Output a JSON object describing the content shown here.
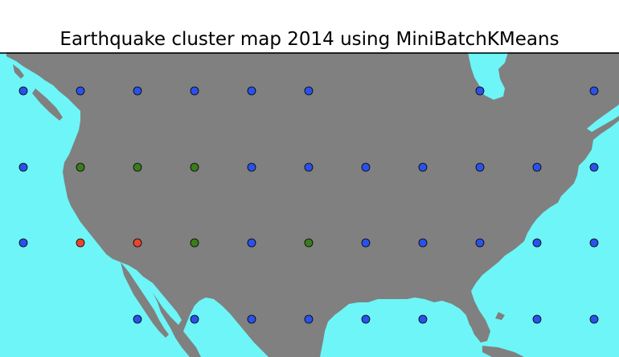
{
  "title": "Earthquake cluster map 2014 using MiniBatchKMeans",
  "colors": {
    "ocean": "#6ef5f7",
    "land": "#808080",
    "frame": "#000000",
    "cluster_blue": "#2a52e8",
    "cluster_green": "#3a7d1c",
    "cluster_red": "#e8452a"
  },
  "chart_data": {
    "type": "scatter",
    "title": "Earthquake cluster map 2014 using MiniBatchKMeans",
    "grid": false,
    "legend": "none",
    "points": [
      {
        "col": 0,
        "row": 0,
        "cluster": "blue"
      },
      {
        "col": 1,
        "row": 0,
        "cluster": "blue"
      },
      {
        "col": 2,
        "row": 0,
        "cluster": "blue"
      },
      {
        "col": 3,
        "row": 0,
        "cluster": "blue"
      },
      {
        "col": 4,
        "row": 0,
        "cluster": "blue"
      },
      {
        "col": 5,
        "row": 0,
        "cluster": "blue"
      },
      {
        "col": 8,
        "row": 0,
        "cluster": "blue"
      },
      {
        "col": 10,
        "row": 0,
        "cluster": "blue"
      },
      {
        "col": 0,
        "row": 1,
        "cluster": "blue"
      },
      {
        "col": 1,
        "row": 1,
        "cluster": "green"
      },
      {
        "col": 2,
        "row": 1,
        "cluster": "green"
      },
      {
        "col": 3,
        "row": 1,
        "cluster": "green"
      },
      {
        "col": 4,
        "row": 1,
        "cluster": "blue"
      },
      {
        "col": 5,
        "row": 1,
        "cluster": "blue"
      },
      {
        "col": 6,
        "row": 1,
        "cluster": "blue"
      },
      {
        "col": 7,
        "row": 1,
        "cluster": "blue"
      },
      {
        "col": 8,
        "row": 1,
        "cluster": "blue"
      },
      {
        "col": 9,
        "row": 1,
        "cluster": "blue"
      },
      {
        "col": 10,
        "row": 1,
        "cluster": "blue"
      },
      {
        "col": 0,
        "row": 2,
        "cluster": "blue"
      },
      {
        "col": 1,
        "row": 2,
        "cluster": "red"
      },
      {
        "col": 2,
        "row": 2,
        "cluster": "red"
      },
      {
        "col": 3,
        "row": 2,
        "cluster": "green"
      },
      {
        "col": 4,
        "row": 2,
        "cluster": "blue"
      },
      {
        "col": 5,
        "row": 2,
        "cluster": "green"
      },
      {
        "col": 6,
        "row": 2,
        "cluster": "blue"
      },
      {
        "col": 7,
        "row": 2,
        "cluster": "blue"
      },
      {
        "col": 8,
        "row": 2,
        "cluster": "blue"
      },
      {
        "col": 9,
        "row": 2,
        "cluster": "blue"
      },
      {
        "col": 10,
        "row": 2,
        "cluster": "blue"
      },
      {
        "col": 2,
        "row": 3,
        "cluster": "blue"
      },
      {
        "col": 3,
        "row": 3,
        "cluster": "blue"
      },
      {
        "col": 4,
        "row": 3,
        "cluster": "blue"
      },
      {
        "col": 5,
        "row": 3,
        "cluster": "blue"
      },
      {
        "col": 6,
        "row": 3,
        "cluster": "blue"
      },
      {
        "col": 7,
        "row": 3,
        "cluster": "blue"
      },
      {
        "col": 9,
        "row": 3,
        "cluster": "blue"
      },
      {
        "col": 10,
        "row": 3,
        "cluster": "blue"
      }
    ]
  }
}
